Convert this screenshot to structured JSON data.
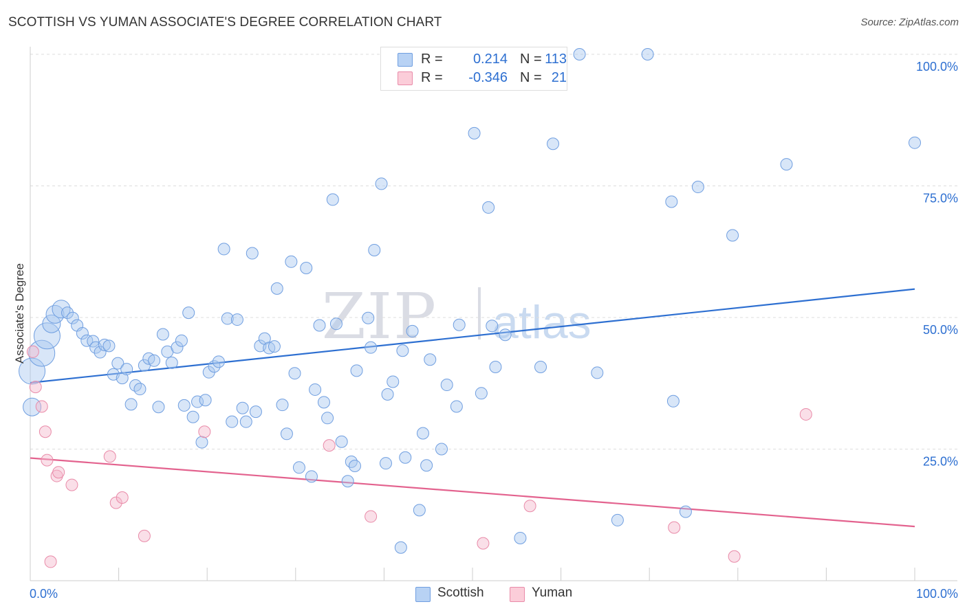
{
  "title": "SCOTTISH VS YUMAN ASSOCIATE'S DEGREE CORRELATION CHART",
  "source": "Source: ZipAtlas.com",
  "watermark": {
    "zip": "ZIP",
    "atlas": "atlas"
  },
  "colors": {
    "scottish_fill": "#a9c7f0",
    "scottish_stroke": "#6f9ee0",
    "scottish_line": "#2d6fd1",
    "yuman_fill": "#f5b7cb",
    "yuman_stroke": "#e98aa8",
    "yuman_line": "#e3628e",
    "value_text": "#2d6fd1",
    "grid": "#dddddd"
  },
  "legend": {
    "rows": [
      {
        "series": "Scottish",
        "r_label": "R =",
        "r_value": "0.214",
        "n_label": "N =",
        "n_value": "113"
      },
      {
        "series": "Yuman",
        "r_label": "R =",
        "r_value": "-0.346",
        "n_label": "N =",
        "n_value": "21"
      }
    ]
  },
  "bottom_legend": [
    "Scottish",
    "Yuman"
  ],
  "chart_data": {
    "type": "scatter",
    "title": "SCOTTISH VS YUMAN ASSOCIATE'S DEGREE CORRELATION CHART",
    "xlabel": "",
    "ylabel": "Associate's Degree",
    "xlim": [
      0,
      100
    ],
    "ylim": [
      0,
      100
    ],
    "x_tick_labels": [
      "0.0%",
      "100.0%"
    ],
    "y_tick_labels": [
      "25.0%",
      "50.0%",
      "75.0%",
      "100.0%"
    ],
    "y_ticks": [
      25,
      50,
      75,
      100
    ],
    "grid": true,
    "legend_position": "top-center",
    "series": [
      {
        "name": "Scottish",
        "r": 0.214,
        "n": 113,
        "trend": {
          "x": [
            0,
            100
          ],
          "y": [
            37.6,
            55.4
          ]
        },
        "points": [
          {
            "x": 0.2,
            "y": 39.8,
            "s": 3
          },
          {
            "x": 0.2,
            "y": 33.0,
            "s": 2
          },
          {
            "x": 1.3,
            "y": 43.2,
            "s": 3
          },
          {
            "x": 1.9,
            "y": 46.5,
            "s": 3
          },
          {
            "x": 2.4,
            "y": 48.8,
            "s": 2
          },
          {
            "x": 2.8,
            "y": 50.6,
            "s": 2
          },
          {
            "x": 3.5,
            "y": 51.6,
            "s": 2
          },
          {
            "x": 4.2,
            "y": 50.9,
            "s": 1
          },
          {
            "x": 4.8,
            "y": 49.9,
            "s": 1
          },
          {
            "x": 5.3,
            "y": 48.5,
            "s": 1
          },
          {
            "x": 5.9,
            "y": 47.0,
            "s": 1
          },
          {
            "x": 6.4,
            "y": 45.6,
            "s": 1
          },
          {
            "x": 7.1,
            "y": 45.5,
            "s": 1
          },
          {
            "x": 7.4,
            "y": 44.3,
            "s": 1
          },
          {
            "x": 7.9,
            "y": 43.4,
            "s": 1
          },
          {
            "x": 8.4,
            "y": 44.8,
            "s": 1
          },
          {
            "x": 8.9,
            "y": 44.6,
            "s": 1
          },
          {
            "x": 9.4,
            "y": 39.2,
            "s": 1
          },
          {
            "x": 9.9,
            "y": 41.3,
            "s": 1
          },
          {
            "x": 10.4,
            "y": 38.5,
            "s": 1
          },
          {
            "x": 10.9,
            "y": 40.2,
            "s": 1
          },
          {
            "x": 11.4,
            "y": 33.5,
            "s": 1
          },
          {
            "x": 11.9,
            "y": 37.1,
            "s": 1
          },
          {
            "x": 12.4,
            "y": 36.4,
            "s": 1
          },
          {
            "x": 12.9,
            "y": 40.9,
            "s": 1
          },
          {
            "x": 13.4,
            "y": 42.2,
            "s": 1
          },
          {
            "x": 14.0,
            "y": 41.8,
            "s": 1
          },
          {
            "x": 14.5,
            "y": 33.0,
            "s": 1
          },
          {
            "x": 15.0,
            "y": 46.8,
            "s": 1
          },
          {
            "x": 15.5,
            "y": 43.5,
            "s": 1
          },
          {
            "x": 16.0,
            "y": 41.4,
            "s": 1
          },
          {
            "x": 16.6,
            "y": 44.3,
            "s": 1
          },
          {
            "x": 17.1,
            "y": 45.6,
            "s": 1
          },
          {
            "x": 17.4,
            "y": 33.3,
            "s": 1
          },
          {
            "x": 17.9,
            "y": 50.9,
            "s": 1
          },
          {
            "x": 18.4,
            "y": 31.1,
            "s": 1
          },
          {
            "x": 18.9,
            "y": 34.0,
            "s": 1
          },
          {
            "x": 19.4,
            "y": 26.3,
            "s": 1
          },
          {
            "x": 19.8,
            "y": 34.3,
            "s": 1
          },
          {
            "x": 20.2,
            "y": 39.6,
            "s": 1
          },
          {
            "x": 20.8,
            "y": 40.7,
            "s": 1
          },
          {
            "x": 21.3,
            "y": 41.6,
            "s": 1
          },
          {
            "x": 21.9,
            "y": 63.0,
            "s": 1
          },
          {
            "x": 22.3,
            "y": 49.8,
            "s": 1
          },
          {
            "x": 22.8,
            "y": 30.2,
            "s": 1
          },
          {
            "x": 23.4,
            "y": 49.6,
            "s": 1
          },
          {
            "x": 24.0,
            "y": 32.8,
            "s": 1
          },
          {
            "x": 24.4,
            "y": 30.2,
            "s": 1
          },
          {
            "x": 25.1,
            "y": 62.2,
            "s": 1
          },
          {
            "x": 25.5,
            "y": 32.1,
            "s": 1
          },
          {
            "x": 26.0,
            "y": 44.6,
            "s": 1
          },
          {
            "x": 26.5,
            "y": 46.0,
            "s": 1
          },
          {
            "x": 27.0,
            "y": 44.2,
            "s": 1
          },
          {
            "x": 27.6,
            "y": 44.5,
            "s": 1
          },
          {
            "x": 27.9,
            "y": 55.5,
            "s": 1
          },
          {
            "x": 28.5,
            "y": 33.4,
            "s": 1
          },
          {
            "x": 29.0,
            "y": 27.9,
            "s": 1
          },
          {
            "x": 29.5,
            "y": 60.6,
            "s": 1
          },
          {
            "x": 29.9,
            "y": 39.4,
            "s": 1
          },
          {
            "x": 30.4,
            "y": 21.5,
            "s": 1
          },
          {
            "x": 31.2,
            "y": 59.4,
            "s": 1
          },
          {
            "x": 31.8,
            "y": 19.8,
            "s": 1
          },
          {
            "x": 32.2,
            "y": 36.3,
            "s": 1
          },
          {
            "x": 32.7,
            "y": 48.5,
            "s": 1
          },
          {
            "x": 33.2,
            "y": 33.9,
            "s": 1
          },
          {
            "x": 33.6,
            "y": 30.9,
            "s": 1
          },
          {
            "x": 34.2,
            "y": 72.4,
            "s": 1
          },
          {
            "x": 34.6,
            "y": 48.8,
            "s": 1
          },
          {
            "x": 35.2,
            "y": 26.4,
            "s": 1
          },
          {
            "x": 35.9,
            "y": 18.9,
            "s": 1
          },
          {
            "x": 36.3,
            "y": 22.6,
            "s": 1
          },
          {
            "x": 36.7,
            "y": 21.8,
            "s": 1
          },
          {
            "x": 36.9,
            "y": 39.9,
            "s": 1
          },
          {
            "x": 38.2,
            "y": 49.9,
            "s": 1
          },
          {
            "x": 38.5,
            "y": 44.3,
            "s": 1
          },
          {
            "x": 38.9,
            "y": 62.8,
            "s": 1
          },
          {
            "x": 39.7,
            "y": 75.4,
            "s": 1
          },
          {
            "x": 40.2,
            "y": 22.3,
            "s": 1
          },
          {
            "x": 40.4,
            "y": 35.4,
            "s": 1
          },
          {
            "x": 41.0,
            "y": 37.8,
            "s": 1
          },
          {
            "x": 41.9,
            "y": 6.3,
            "s": 1
          },
          {
            "x": 42.1,
            "y": 43.7,
            "s": 1
          },
          {
            "x": 42.4,
            "y": 23.4,
            "s": 1
          },
          {
            "x": 43.2,
            "y": 47.4,
            "s": 1
          },
          {
            "x": 44.0,
            "y": 13.4,
            "s": 1
          },
          {
            "x": 44.4,
            "y": 28.0,
            "s": 1
          },
          {
            "x": 44.8,
            "y": 21.9,
            "s": 1
          },
          {
            "x": 45.2,
            "y": 42.0,
            "s": 1
          },
          {
            "x": 46.5,
            "y": 25.0,
            "s": 1
          },
          {
            "x": 47.1,
            "y": 37.2,
            "s": 1
          },
          {
            "x": 48.2,
            "y": 33.1,
            "s": 1
          },
          {
            "x": 48.5,
            "y": 48.6,
            "s": 1
          },
          {
            "x": 50.2,
            "y": 85.0,
            "s": 1
          },
          {
            "x": 51.0,
            "y": 35.6,
            "s": 1
          },
          {
            "x": 51.8,
            "y": 70.9,
            "s": 1
          },
          {
            "x": 52.2,
            "y": 48.4,
            "s": 1
          },
          {
            "x": 52.6,
            "y": 40.6,
            "s": 1
          },
          {
            "x": 53.7,
            "y": 46.7,
            "s": 1
          },
          {
            "x": 55.4,
            "y": 8.1,
            "s": 1
          },
          {
            "x": 57.7,
            "y": 40.6,
            "s": 1
          },
          {
            "x": 59.1,
            "y": 83.0,
            "s": 1
          },
          {
            "x": 62.1,
            "y": 100.0,
            "s": 1
          },
          {
            "x": 64.1,
            "y": 39.5,
            "s": 1
          },
          {
            "x": 66.4,
            "y": 11.5,
            "s": 1
          },
          {
            "x": 69.8,
            "y": 100.0,
            "s": 1
          },
          {
            "x": 72.5,
            "y": 72.0,
            "s": 1
          },
          {
            "x": 72.7,
            "y": 34.1,
            "s": 1
          },
          {
            "x": 75.5,
            "y": 74.8,
            "s": 1
          },
          {
            "x": 74.1,
            "y": 13.1,
            "s": 1
          },
          {
            "x": 79.4,
            "y": 65.6,
            "s": 1
          },
          {
            "x": 85.5,
            "y": 79.1,
            "s": 1
          },
          {
            "x": 100.0,
            "y": 83.2,
            "s": 1
          }
        ]
      },
      {
        "name": "Yuman",
        "r": -0.346,
        "n": 21,
        "trend": {
          "x": [
            0,
            100
          ],
          "y": [
            23.3,
            10.3
          ]
        },
        "points": [
          {
            "x": 0.3,
            "y": 43.5
          },
          {
            "x": 0.6,
            "y": 36.8
          },
          {
            "x": 1.3,
            "y": 33.1
          },
          {
            "x": 1.7,
            "y": 28.3
          },
          {
            "x": 1.9,
            "y": 22.9
          },
          {
            "x": 2.3,
            "y": 3.6
          },
          {
            "x": 3.0,
            "y": 19.9
          },
          {
            "x": 3.2,
            "y": 20.6
          },
          {
            "x": 4.7,
            "y": 18.2
          },
          {
            "x": 9.0,
            "y": 23.6
          },
          {
            "x": 9.7,
            "y": 14.8
          },
          {
            "x": 10.4,
            "y": 15.8
          },
          {
            "x": 12.9,
            "y": 8.5
          },
          {
            "x": 19.7,
            "y": 28.3
          },
          {
            "x": 33.8,
            "y": 25.7
          },
          {
            "x": 38.5,
            "y": 12.2
          },
          {
            "x": 51.2,
            "y": 7.1
          },
          {
            "x": 56.5,
            "y": 14.2
          },
          {
            "x": 72.8,
            "y": 10.1
          },
          {
            "x": 79.6,
            "y": 4.6
          },
          {
            "x": 87.7,
            "y": 31.6
          }
        ]
      }
    ]
  }
}
